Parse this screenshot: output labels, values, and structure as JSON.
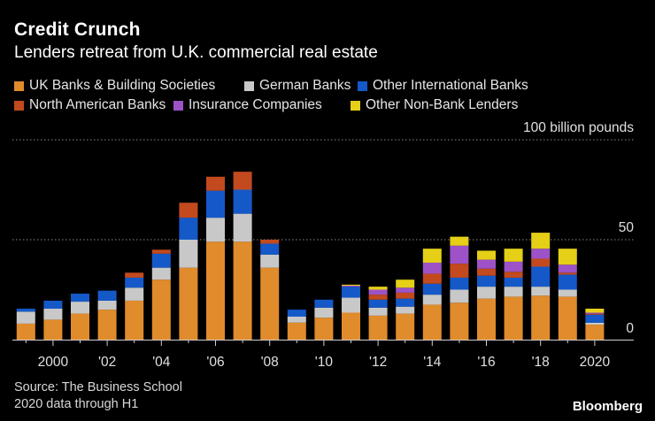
{
  "chart_data": {
    "type": "bar",
    "stacked": true,
    "title": "Credit Crunch",
    "subtitle": "Lenders retreat from U.K. commercial real estate",
    "unit_label": "100 billion pounds",
    "ylim": [
      0,
      100
    ],
    "yticks": [
      {
        "value": 100,
        "label": "100 billion pounds"
      },
      {
        "value": 50,
        "label": "50"
      },
      {
        "value": 0,
        "label": "0"
      }
    ],
    "grid": true,
    "x": [
      1999,
      2000,
      2001,
      2002,
      2003,
      2004,
      2005,
      2006,
      2007,
      2008,
      2009,
      2010,
      2011,
      2012,
      2013,
      2014,
      2015,
      2016,
      2017,
      2018,
      2019,
      2020
    ],
    "xtick_labels": [
      {
        "x": 2000,
        "label": "2000"
      },
      {
        "x": 2002,
        "label": "'02"
      },
      {
        "x": 2004,
        "label": "'04"
      },
      {
        "x": 2006,
        "label": "'06"
      },
      {
        "x": 2008,
        "label": "'08"
      },
      {
        "x": 2010,
        "label": "'10"
      },
      {
        "x": 2012,
        "label": "'12"
      },
      {
        "x": 2014,
        "label": "'14"
      },
      {
        "x": 2016,
        "label": "'16"
      },
      {
        "x": 2018,
        "label": "'18"
      },
      {
        "x": 2020,
        "label": "2020"
      }
    ],
    "series": [
      {
        "name": "UK Banks & Building Societies",
        "color": "#e08b2c",
        "values": [
          8,
          10,
          13,
          15,
          19.5,
          30,
          36,
          49,
          49,
          36,
          8.5,
          11,
          13.5,
          12,
          13,
          17.5,
          18.5,
          20.5,
          21.5,
          22,
          21.5,
          7.5
        ]
      },
      {
        "name": "German Banks",
        "color": "#c8c8c8",
        "values": [
          6,
          5.5,
          6,
          4.5,
          6.5,
          6,
          14,
          12,
          14,
          6.5,
          3,
          5,
          7.5,
          4,
          3.5,
          5,
          6.5,
          6,
          5,
          4.5,
          3.5,
          1
        ]
      },
      {
        "name": "Other International Banks",
        "color": "#1559c9",
        "values": [
          1.5,
          4,
          4,
          5,
          5,
          7,
          11,
          13.5,
          12,
          5.5,
          3.5,
          4,
          5.5,
          4,
          4,
          5.5,
          6,
          5.5,
          4.5,
          10,
          7.5,
          4
        ]
      },
      {
        "name": "North American Banks",
        "color": "#c24a1e",
        "values": [
          0,
          0,
          0,
          0,
          2.5,
          2,
          7.5,
          7,
          9,
          2,
          0,
          0,
          0,
          2.5,
          3,
          5,
          7,
          3.5,
          3,
          4,
          1,
          0.5
        ]
      },
      {
        "name": "Insurance Companies",
        "color": "#9d52c7",
        "values": [
          0,
          0,
          0,
          0,
          0,
          0,
          0,
          0,
          0,
          0,
          0,
          0,
          0.5,
          2.5,
          2.5,
          5.5,
          9,
          4.5,
          5,
          5,
          4,
          0.5
        ]
      },
      {
        "name": "Other Non-Bank Lenders",
        "color": "#e5cf17",
        "values": [
          0,
          0,
          0,
          0,
          0,
          0,
          0,
          0,
          0,
          0,
          0,
          0,
          0.5,
          1.5,
          4,
          7,
          4.5,
          4.5,
          6.5,
          8,
          8,
          2
        ]
      }
    ]
  },
  "legend_rows": [
    [
      0,
      1,
      2
    ],
    [
      3,
      4,
      5
    ]
  ],
  "source_lines": [
    "Source: The Business School",
    "2020 data through H1"
  ],
  "brand": "Bloomberg"
}
